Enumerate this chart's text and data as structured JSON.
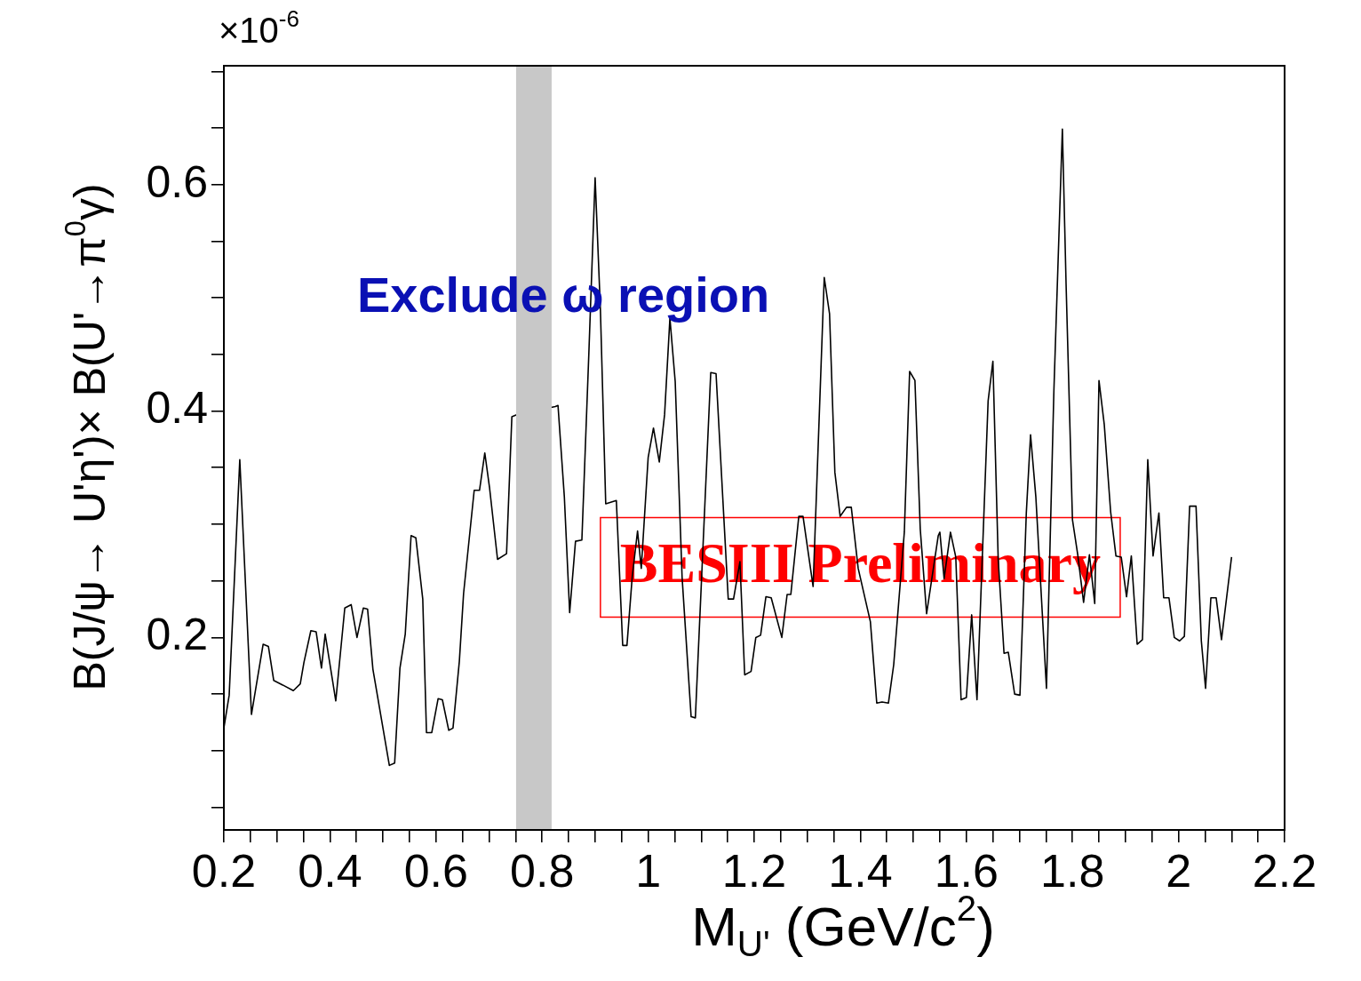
{
  "chart_data": {
    "type": "line",
    "xlabel": "M$_{U'}$ (GeV/c$^{2}$)",
    "ylabel": "B(J/ψ→ U'η')× B(U'→π$^{0}$γ)",
    "x": [
      0.2,
      0.21,
      0.23,
      0.252,
      0.274,
      0.284,
      0.294,
      0.311,
      0.331,
      0.344,
      0.351,
      0.364,
      0.374,
      0.384,
      0.391,
      0.411,
      0.428,
      0.44,
      0.451,
      0.463,
      0.471,
      0.481,
      0.512,
      0.522,
      0.532,
      0.542,
      0.553,
      0.562,
      0.575,
      0.582,
      0.592,
      0.604,
      0.612,
      0.624,
      0.632,
      0.644,
      0.652,
      0.672,
      0.682,
      0.692,
      0.701,
      0.716,
      0.733,
      0.743,
      0.753,
      0.825,
      0.83,
      0.842,
      0.852,
      0.863,
      0.875,
      0.888,
      0.9,
      0.91,
      0.92,
      0.94,
      0.952,
      0.96,
      0.97,
      0.98,
      0.987,
      1.0,
      1.01,
      1.021,
      1.031,
      1.041,
      1.051,
      1.064,
      1.081,
      1.089,
      1.118,
      1.128,
      1.151,
      1.161,
      1.173,
      1.182,
      1.194,
      1.203,
      1.212,
      1.222,
      1.232,
      1.252,
      1.262,
      1.269,
      1.284,
      1.292,
      1.311,
      1.332,
      1.342,
      1.352,
      1.362,
      1.374,
      1.383,
      1.396,
      1.419,
      1.431,
      1.441,
      1.453,
      1.463,
      1.483,
      1.493,
      1.503,
      1.513,
      1.525,
      1.547,
      1.55,
      1.558,
      1.57,
      1.58,
      1.59,
      1.6,
      1.61,
      1.62,
      1.641,
      1.65,
      1.66,
      1.671,
      1.679,
      1.691,
      1.701,
      1.713,
      1.721,
      1.731,
      1.751,
      1.765,
      1.781,
      1.788,
      1.8,
      1.81,
      1.821,
      1.832,
      1.842,
      1.85,
      1.86,
      1.872,
      1.882,
      1.892,
      1.902,
      1.911,
      1.922,
      1.932,
      1.942,
      1.952,
      1.963,
      1.972,
      1.982,
      1.992,
      2.002,
      2.011,
      2.021,
      2.033,
      2.043,
      2.051,
      2.061,
      2.071,
      2.081,
      2.1
    ],
    "series": [
      {
        "color": "#000000",
        "values": [
          0.12,
          0.149,
          0.357,
          0.132,
          0.194,
          0.192,
          0.162,
          0.158,
          0.153,
          0.159,
          0.178,
          0.206,
          0.205,
          0.173,
          0.203,
          0.144,
          0.226,
          0.229,
          0.2,
          0.226,
          0.225,
          0.172,
          0.087,
          0.089,
          0.173,
          0.203,
          0.29,
          0.288,
          0.234,
          0.116,
          0.116,
          0.146,
          0.145,
          0.118,
          0.12,
          0.179,
          0.239,
          0.33,
          0.33,
          0.363,
          0.332,
          0.269,
          0.274,
          0.395,
          0.397,
          0.404,
          0.405,
          0.324,
          0.222,
          0.285,
          0.286,
          0.449,
          0.606,
          0.489,
          0.318,
          0.321,
          0.193,
          0.193,
          0.254,
          0.294,
          0.261,
          0.359,
          0.385,
          0.355,
          0.397,
          0.482,
          0.426,
          0.253,
          0.13,
          0.129,
          0.434,
          0.433,
          0.234,
          0.234,
          0.267,
          0.167,
          0.17,
          0.2,
          0.202,
          0.236,
          0.235,
          0.2,
          0.238,
          0.238,
          0.307,
          0.307,
          0.245,
          0.518,
          0.486,
          0.346,
          0.307,
          0.315,
          0.315,
          0.261,
          0.214,
          0.142,
          0.143,
          0.142,
          0.176,
          0.293,
          0.435,
          0.427,
          0.296,
          0.221,
          0.29,
          0.293,
          0.252,
          0.293,
          0.271,
          0.145,
          0.147,
          0.22,
          0.145,
          0.409,
          0.444,
          0.269,
          0.186,
          0.187,
          0.15,
          0.149,
          0.31,
          0.379,
          0.324,
          0.155,
          0.418,
          0.649,
          0.512,
          0.304,
          0.273,
          0.231,
          0.273,
          0.23,
          0.427,
          0.388,
          0.311,
          0.272,
          0.271,
          0.236,
          0.272,
          0.194,
          0.198,
          0.357,
          0.272,
          0.31,
          0.235,
          0.235,
          0.2,
          0.197,
          0.201,
          0.316,
          0.316,
          0.197,
          0.155,
          0.235,
          0.235,
          0.198,
          0.271
        ]
      }
    ],
    "xlim": [
      0.2,
      2.2
    ],
    "ylim": [
      0.03,
      0.705
    ],
    "xticks": [
      0.2,
      {
        "value": 0.25,
        "label": null
      },
      {
        "value": 0.3,
        "label": null
      },
      {
        "value": 0.35,
        "label": null
      },
      0.4,
      {
        "value": 0.45,
        "label": null
      },
      {
        "value": 0.5,
        "label": null
      },
      {
        "value": 0.55,
        "label": null
      },
      0.6,
      {
        "value": 0.65,
        "label": null
      },
      {
        "value": 0.7,
        "label": null
      },
      {
        "value": 0.75,
        "label": null
      },
      0.8,
      {
        "value": 0.85,
        "label": null
      },
      {
        "value": 0.9,
        "label": null
      },
      {
        "value": 0.95,
        "label": null
      },
      1,
      {
        "value": 1.05,
        "label": null
      },
      {
        "value": 1.1,
        "label": null
      },
      {
        "value": 1.15,
        "label": null
      },
      1.2,
      {
        "value": 1.25,
        "label": null
      },
      {
        "value": 1.3,
        "label": null
      },
      {
        "value": 1.35,
        "label": null
      },
      1.4,
      {
        "value": 1.45,
        "label": null
      },
      {
        "value": 1.5,
        "label": null
      },
      {
        "value": 1.55,
        "label": null
      },
      1.6,
      {
        "value": 1.65,
        "label": null
      },
      {
        "value": 1.7,
        "label": null
      },
      {
        "value": 1.75,
        "label": null
      },
      1.8,
      {
        "value": 1.85,
        "label": null
      },
      {
        "value": 1.9,
        "label": null
      },
      {
        "value": 1.95,
        "label": null
      },
      2,
      {
        "value": 2.05,
        "label": null
      },
      {
        "value": 2.1,
        "label": null
      },
      {
        "value": 2.15,
        "label": null
      },
      2.2
    ],
    "yticks": [
      {
        "value": 0.05,
        "label": null
      },
      {
        "value": 0.1,
        "label": null
      },
      {
        "value": 0.15,
        "label": null
      },
      0.2,
      {
        "value": 0.25,
        "label": null
      },
      {
        "value": 0.3,
        "label": null
      },
      {
        "value": 0.35,
        "label": null
      },
      0.4,
      {
        "value": 0.45,
        "label": null
      },
      {
        "value": 0.5,
        "label": null
      },
      {
        "value": 0.55,
        "label": null
      },
      0.6,
      {
        "value": 0.65,
        "label": null
      },
      {
        "value": 0.7,
        "label": null
      }
    ],
    "bands": [
      {
        "axis": "x",
        "from": 0.751,
        "to": 0.818,
        "color": "#c8c8c8"
      }
    ],
    "annotations": [
      "×10$^{-6}$",
      "Exclude ω region",
      "BESIII Preliminary"
    ],
    "grid": false,
    "legend": false,
    "marker": "none",
    "line_style": "solid"
  }
}
